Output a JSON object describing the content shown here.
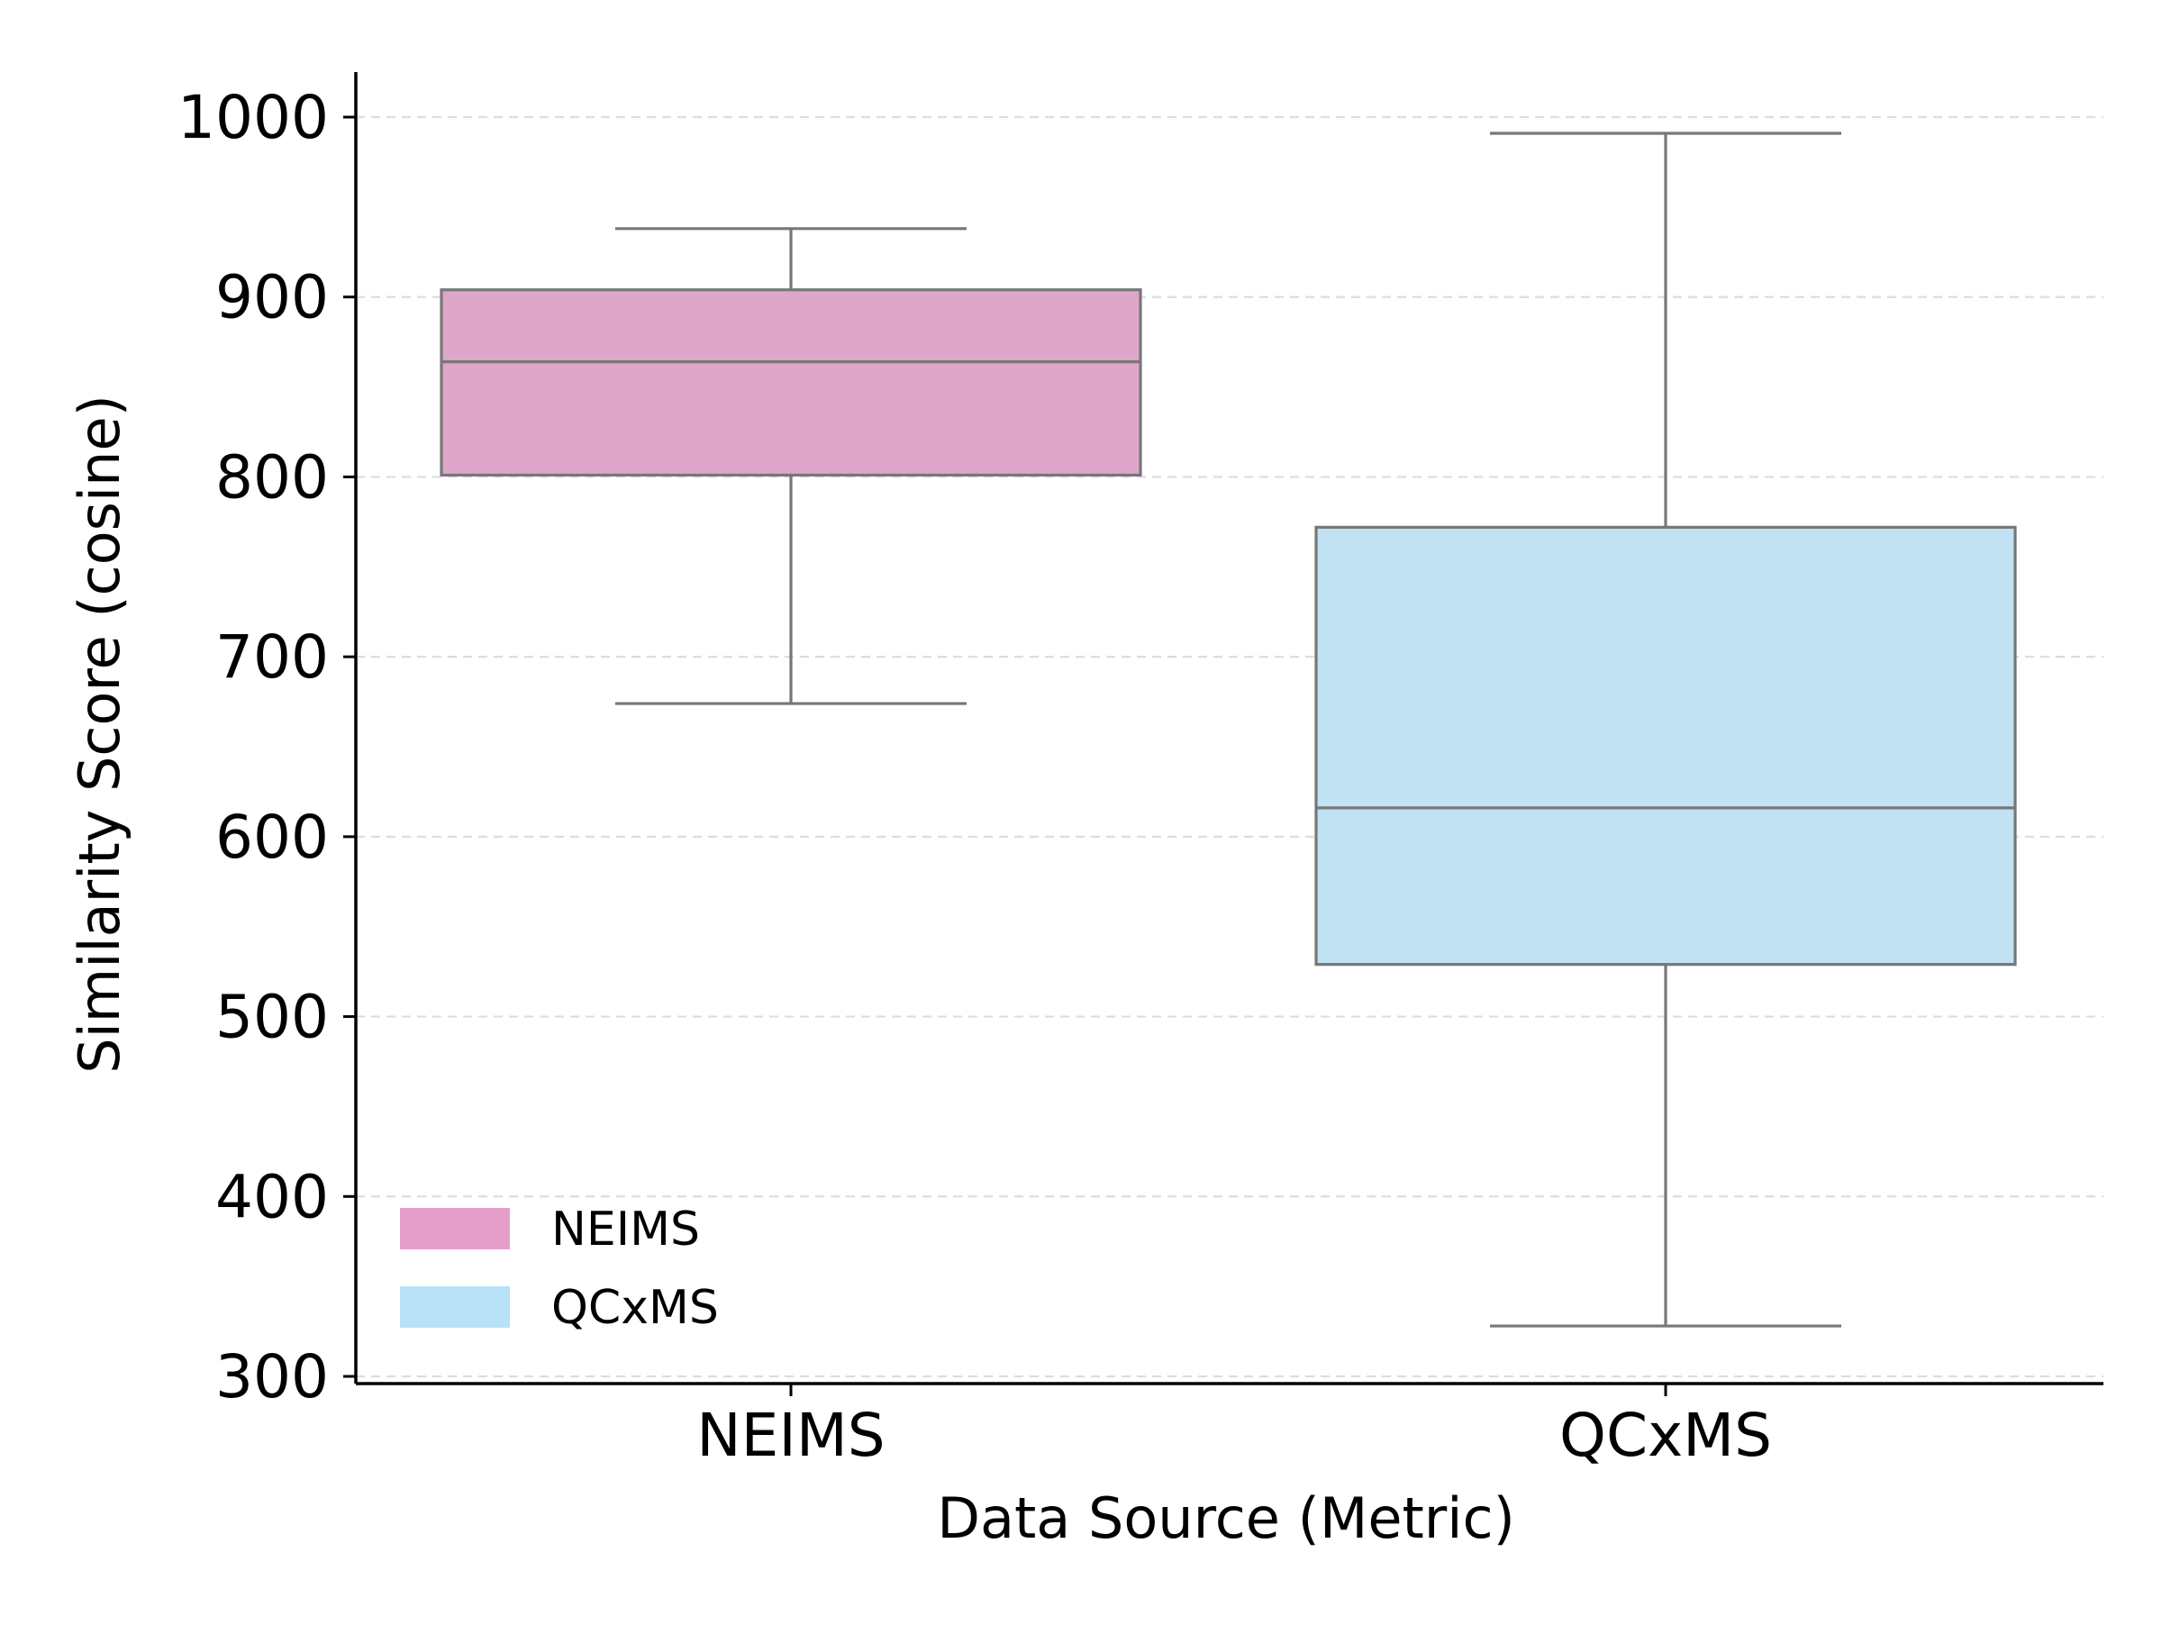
{
  "chart_data": {
    "type": "box",
    "title": "",
    "xlabel": "Data Source (Metric)",
    "ylabel": "Similarity Score (cosine)",
    "categories": [
      "NEIMS",
      "QCxMS"
    ],
    "ylim": [
      295,
      1025
    ],
    "yticks": [
      300,
      400,
      500,
      600,
      700,
      800,
      900,
      1000
    ],
    "grid": "horizontal dashed",
    "legend_position": "lower-left",
    "series": [
      {
        "name": "NEIMS",
        "color": "#dea6c8",
        "legend_color": "#e69fcb",
        "whisker_low": 674,
        "q1": 801,
        "median": 864,
        "q3": 904,
        "whisker_high": 938
      },
      {
        "name": "QCxMS",
        "color": "#c1e2f3",
        "legend_color": "#b9e2f8",
        "whisker_low": 328,
        "q1": 529,
        "median": 616,
        "q3": 772,
        "whisker_high": 991
      }
    ],
    "legend": [
      {
        "label": "NEIMS",
        "color": "#e69fcb"
      },
      {
        "label": "QCxMS",
        "color": "#b9e2f8"
      }
    ]
  }
}
